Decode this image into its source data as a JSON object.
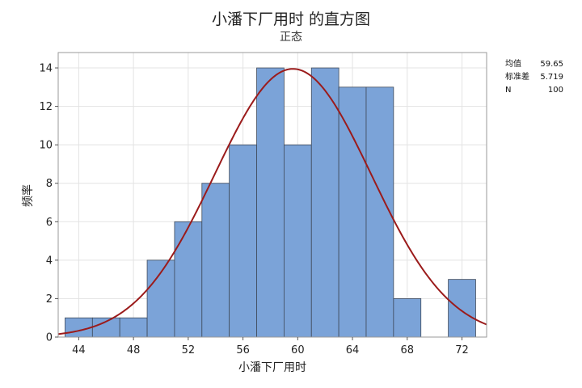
{
  "chart_data": {
    "type": "histogram",
    "title": "小潘下厂用时 的直方图",
    "subtitle": "正态",
    "xlabel": "小潘下厂用时",
    "ylabel": "频率",
    "xlim": [
      42.5,
      73.8
    ],
    "ylim": [
      0,
      14.8
    ],
    "x_ticks": [
      44,
      48,
      52,
      56,
      60,
      64,
      68,
      72
    ],
    "y_ticks": [
      0,
      2,
      4,
      6,
      8,
      10,
      12,
      14
    ],
    "bin_width": 2,
    "bins": [
      {
        "center": 44,
        "count": 1
      },
      {
        "center": 46,
        "count": 1
      },
      {
        "center": 48,
        "count": 1
      },
      {
        "center": 50,
        "count": 4
      },
      {
        "center": 52,
        "count": 6
      },
      {
        "center": 54,
        "count": 8
      },
      {
        "center": 56,
        "count": 10
      },
      {
        "center": 58,
        "count": 14
      },
      {
        "center": 60,
        "count": 10
      },
      {
        "center": 62,
        "count": 14
      },
      {
        "center": 64,
        "count": 13
      },
      {
        "center": 66,
        "count": 13
      },
      {
        "center": 68,
        "count": 2
      },
      {
        "center": 70,
        "count": 0
      },
      {
        "center": 72,
        "count": 3
      }
    ],
    "fit_curve": {
      "distribution": "normal",
      "mean": 59.65,
      "stdev": 5.719,
      "n": 100
    },
    "grid": true,
    "colors": {
      "bar_fill": "#7BA3D8",
      "bar_edge": "#3F4A5A",
      "curve": "#9B1B1B",
      "grid": "#E3E3E3",
      "frame": "#9A9A9A"
    },
    "stats_legend": {
      "placement": "top-right",
      "rows": [
        {
          "label": "均值",
          "value": "59.65"
        },
        {
          "label": "标准差",
          "value": "5.719"
        },
        {
          "label": "N",
          "value": "100"
        }
      ]
    }
  }
}
